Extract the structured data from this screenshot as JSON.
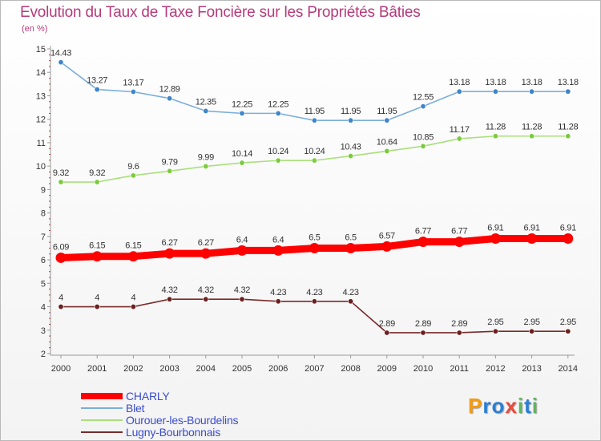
{
  "title": "Evolution du Taux de Taxe Foncière sur les Propriétés Bâties",
  "unit_label": "(en %)",
  "logo": {
    "text": "Proxiti",
    "letter_colors": [
      "#f39c12",
      "#2a7fd4",
      "#2a7fd4",
      "#e74c3c",
      "#5cb85c",
      "#2a7fd4",
      "#5cb85c"
    ]
  },
  "colors": {
    "axis": "#999999",
    "tick_label": "#333333",
    "data_label": "#333333",
    "legend_text": "#3a4ccf",
    "title": "#b63a7b"
  },
  "chart_data": {
    "type": "line",
    "title": "Evolution du Taux de Taxe Foncière sur les Propriétés Bâties",
    "ylabel": "(en %)",
    "xlabel": "",
    "ylim": [
      2,
      15
    ],
    "yticks": [
      "2",
      "3",
      "4",
      "5",
      "6",
      "7",
      "8",
      "9",
      "10",
      "11",
      "12",
      "13",
      "14",
      "15"
    ],
    "grid": false,
    "legend_position": "bottom-left",
    "x": [
      "2000",
      "2001",
      "2002",
      "2003",
      "2004",
      "2005",
      "2006",
      "2007",
      "2008",
      "2009",
      "2010",
      "2011",
      "2012",
      "2013",
      "2014"
    ],
    "series": [
      {
        "name": "CHARLY",
        "color": "#ff0000",
        "marker_color": "#ff0000",
        "emphasis": "bold",
        "values": [
          6.09,
          6.15,
          6.15,
          6.27,
          6.27,
          6.4,
          6.4,
          6.5,
          6.5,
          6.57,
          6.77,
          6.77,
          6.91,
          6.91,
          6.91
        ],
        "labels": [
          "6.09",
          "6.15",
          "6.15",
          "6.27",
          "6.27",
          "6.4",
          "6.4",
          "6.5",
          "6.5",
          "6.57",
          "6.77",
          "6.77",
          "6.91",
          "6.91",
          "6.91"
        ]
      },
      {
        "name": "Blet",
        "color": "#7aaedb",
        "marker_color": "#3f85c9",
        "values": [
          14.43,
          13.27,
          13.17,
          12.89,
          12.35,
          12.25,
          12.25,
          11.95,
          11.95,
          11.95,
          12.55,
          13.18,
          13.18,
          13.18,
          13.18
        ],
        "labels": [
          "14.43",
          "13.27",
          "13.17",
          "12.89",
          "12.35",
          "12.25",
          "12.25",
          "11.95",
          "11.95",
          "11.95",
          "12.55",
          "13.18",
          "13.18",
          "13.18",
          "13.18"
        ]
      },
      {
        "name": "Ourouer-les-Bourdelins",
        "color": "#a8e07a",
        "marker_color": "#7ccb3e",
        "values": [
          9.32,
          9.32,
          9.6,
          9.79,
          9.99,
          10.14,
          10.24,
          10.24,
          10.43,
          10.64,
          10.85,
          11.17,
          11.28,
          11.28,
          11.28
        ],
        "labels": [
          "9.32",
          "9.32",
          "9.6",
          "9.79",
          "9.99",
          "10.14",
          "10.24",
          "10.24",
          "10.43",
          "10.64",
          "10.85",
          "11.17",
          "11.28",
          "11.28",
          "11.28"
        ]
      },
      {
        "name": "Lugny-Bourbonnais",
        "color": "#7a2a2a",
        "marker_color": "#6b1f1f",
        "values": [
          4,
          4,
          4,
          4.32,
          4.32,
          4.32,
          4.23,
          4.23,
          4.23,
          2.89,
          2.89,
          2.89,
          2.95,
          2.95,
          2.95
        ],
        "labels": [
          "4",
          "4",
          "4",
          "4.32",
          "4.32",
          "4.32",
          "4.23",
          "4.23",
          "4.23",
          "2.89",
          "2.89",
          "2.89",
          "2.95",
          "2.95",
          "2.95"
        ]
      }
    ]
  }
}
